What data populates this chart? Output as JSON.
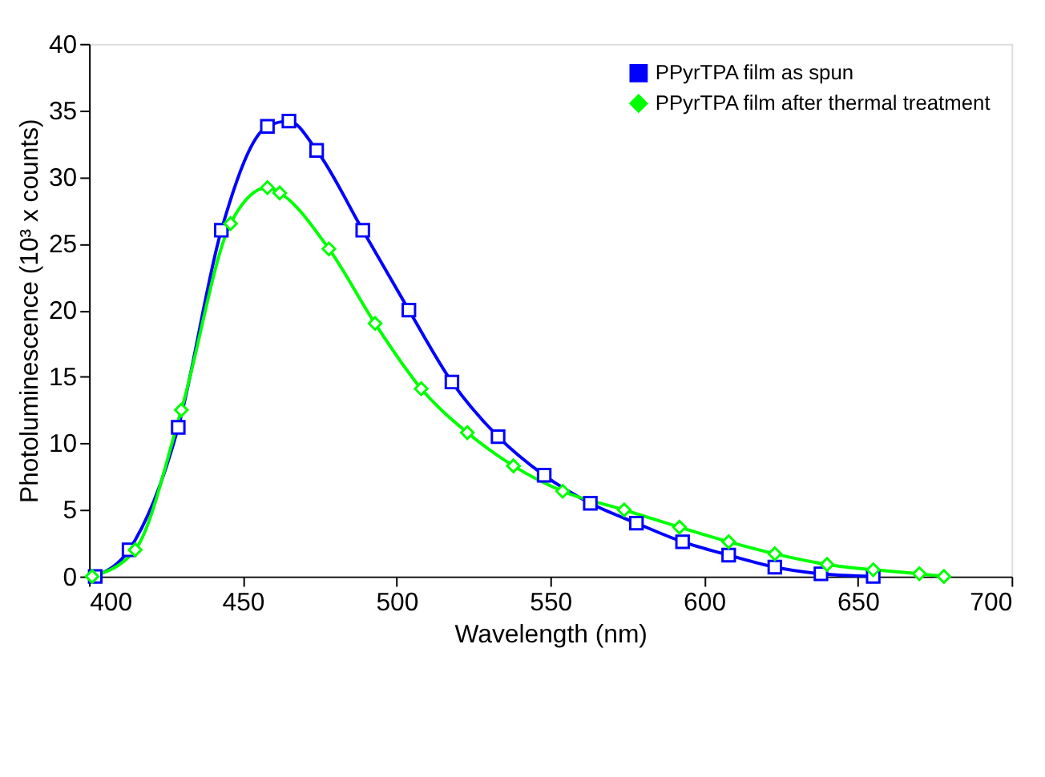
{
  "chart_data": {
    "type": "line",
    "xlabel": "Wavelength (nm)",
    "ylabel": "Photoluminescence (10³ x counts)",
    "xlim": [
      400,
      700
    ],
    "xticks": [
      400,
      450,
      500,
      550,
      600,
      650,
      700
    ],
    "ylim": [
      0,
      40
    ],
    "yticks": [
      0,
      5,
      10,
      15,
      20,
      25,
      30,
      35,
      40
    ],
    "grid": false,
    "legend": "top right",
    "line_style": "solid",
    "series": [
      {
        "name": "PPyrTPA film as spun",
        "color": "#0000ff",
        "marker": "square",
        "x": [
          402,
          413,
          429,
          443,
          458,
          465,
          474,
          489,
          504,
          518,
          533,
          548,
          563,
          578,
          593,
          608,
          623,
          638,
          655
        ],
        "values": [
          0,
          2,
          11.2,
          26,
          33.8,
          34.2,
          32,
          26,
          20,
          14.6,
          10.5,
          7.6,
          5.5,
          4,
          2.6,
          1.6,
          0.7,
          0.2,
          0
        ]
      },
      {
        "name": "PPyrTPA film after thermal treatment",
        "color": "#00ff00",
        "marker": "diamond",
        "x": [
          401,
          415,
          430,
          446,
          458,
          462,
          478,
          493,
          508,
          523,
          538,
          554,
          574,
          592,
          608,
          623,
          640,
          655,
          670,
          678
        ],
        "values": [
          0,
          2,
          12.5,
          26.5,
          29.2,
          28.8,
          24.6,
          19,
          14.1,
          10.8,
          8.3,
          6.4,
          5,
          3.7,
          2.6,
          1.7,
          0.9,
          0.5,
          0.2,
          0
        ]
      }
    ]
  }
}
